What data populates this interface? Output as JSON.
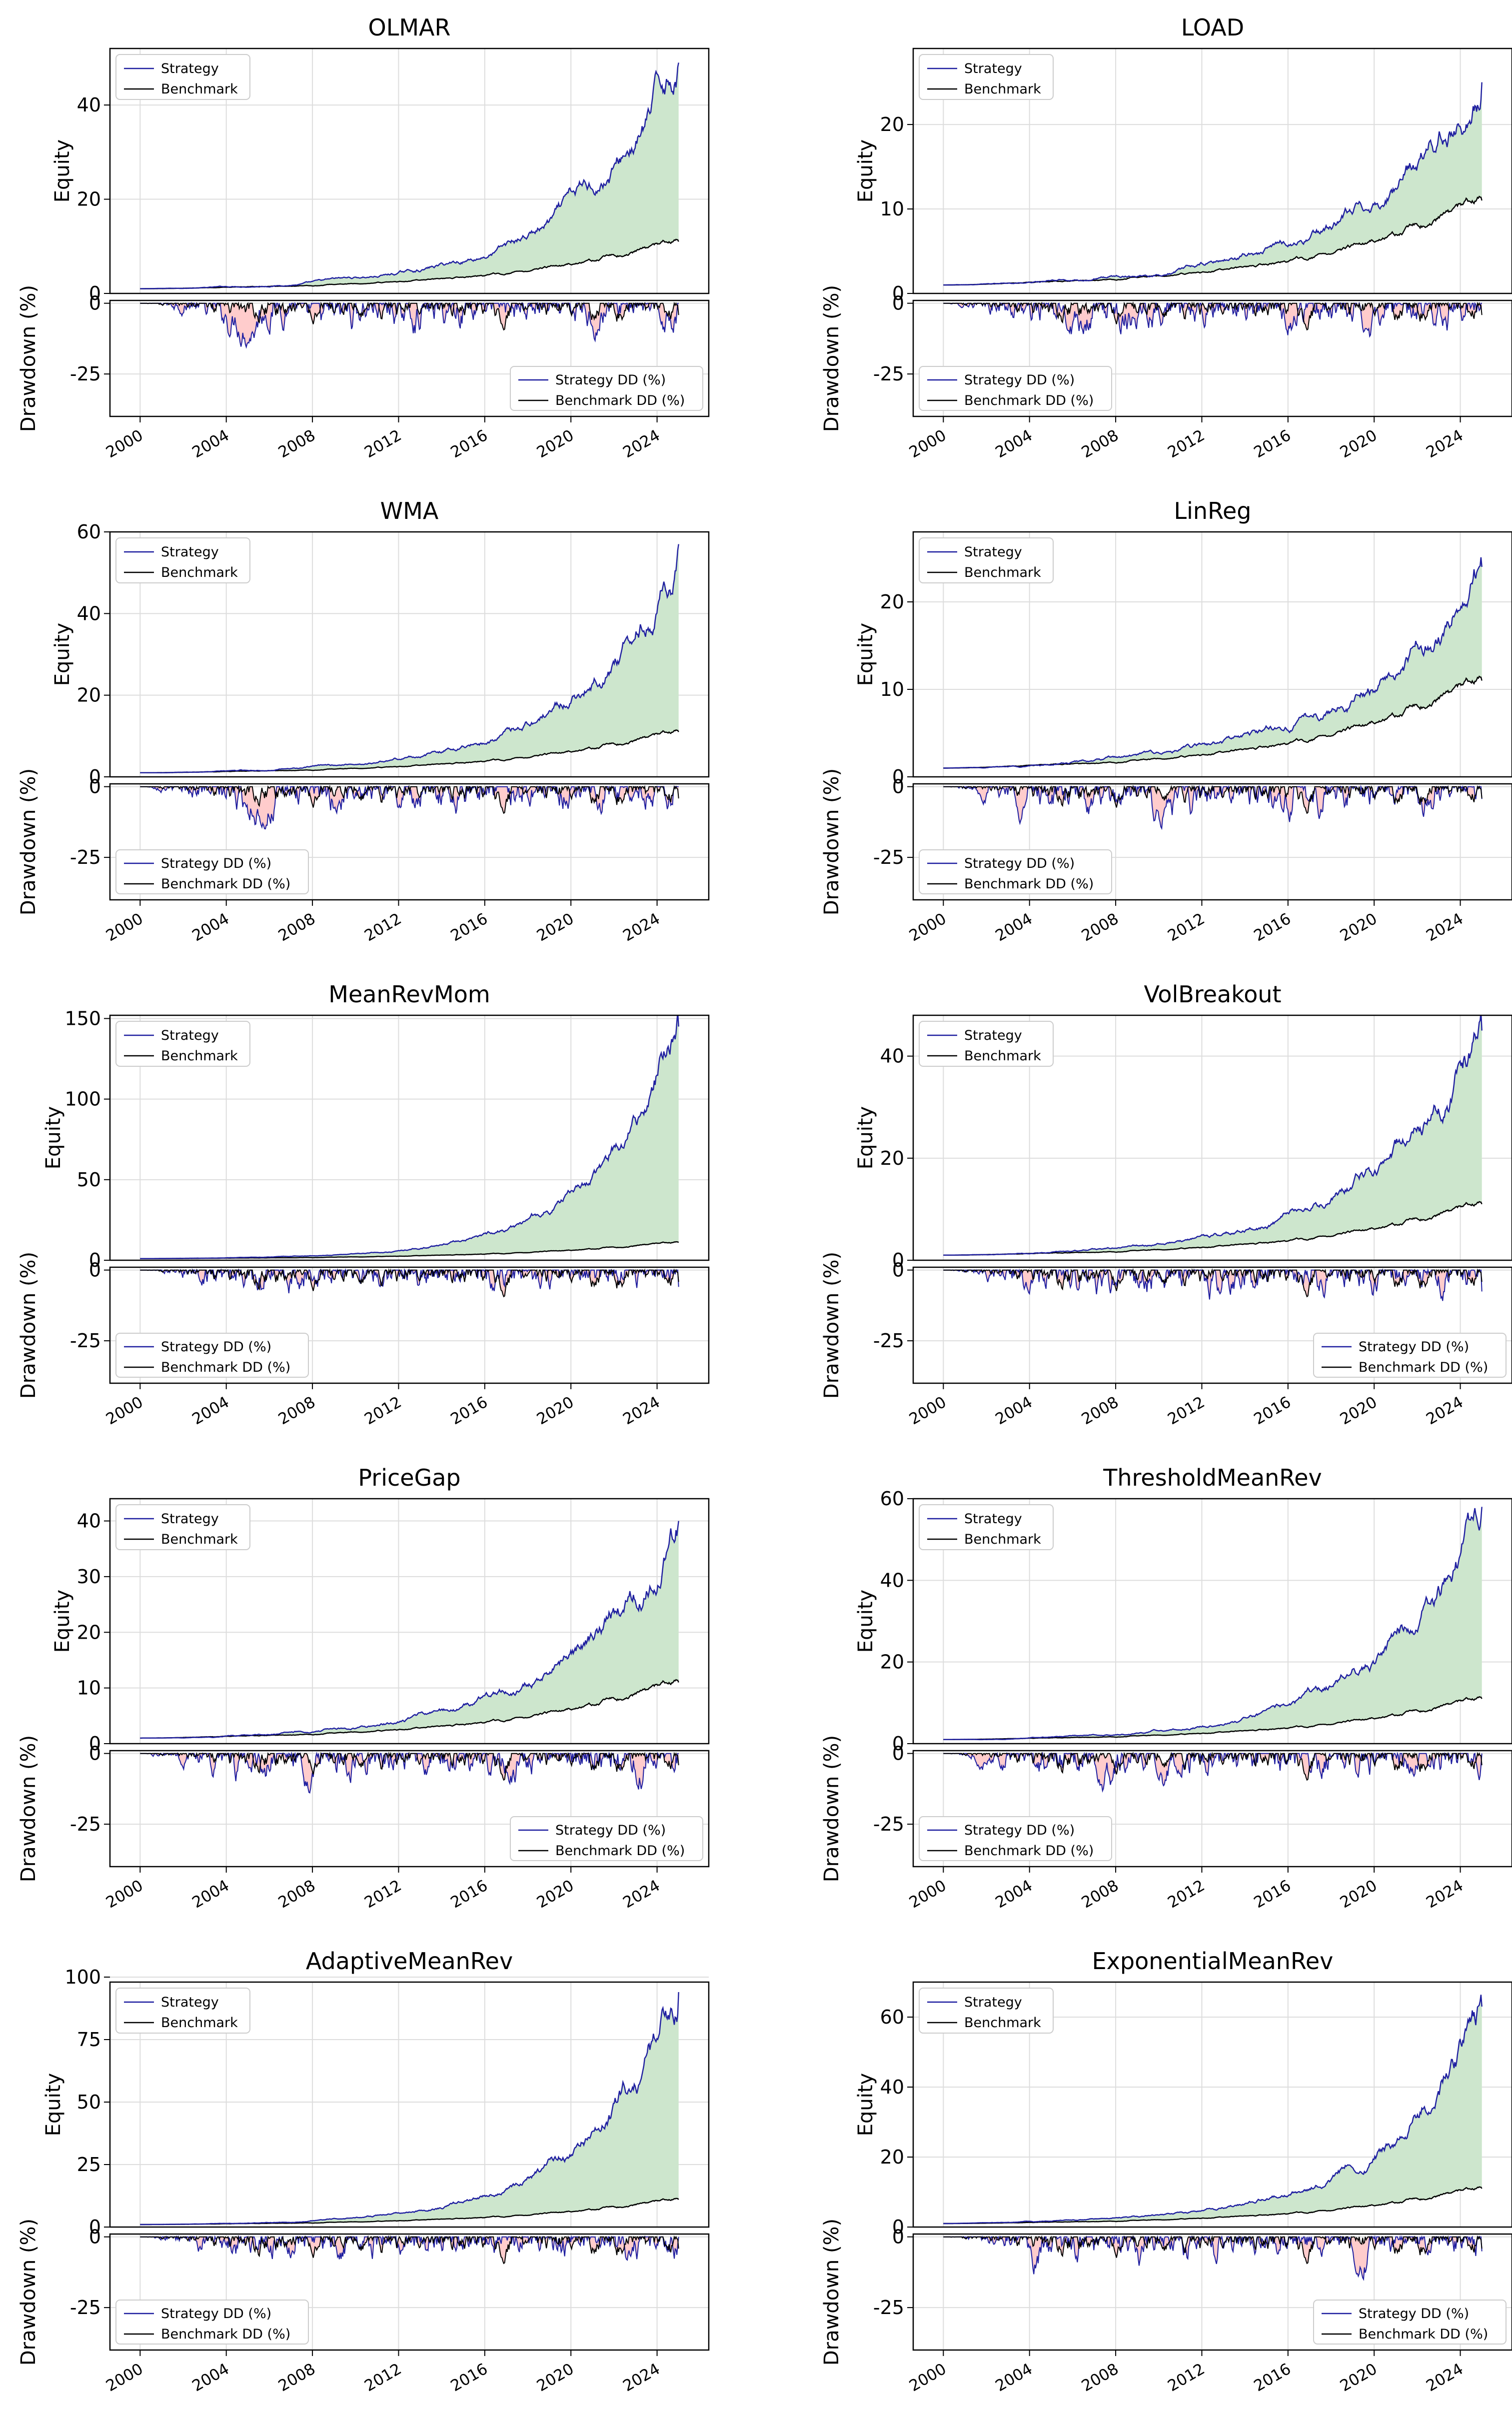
{
  "colors": {
    "strategy": "#1f1fa0",
    "benchmark": "#000000",
    "outperform_fill": "#cde6cd",
    "underperform_fill": "#ffcccc",
    "grid": "#dddddd"
  },
  "chart_data": [
    {
      "type": "line",
      "title": "OLMAR",
      "ylabel_top": "Equity",
      "ylabel_bottom": "Drawdown (%)",
      "equity_ylim": [
        0,
        52
      ],
      "equity_yticks": [
        0,
        20,
        40
      ],
      "dd_ylim": [
        -40,
        1
      ],
      "dd_yticks": [
        0,
        -25
      ],
      "x_ticks": [
        2000,
        2004,
        2008,
        2012,
        2016,
        2020,
        2024
      ],
      "strategy_final": 49,
      "benchmark_final": 11,
      "legend_dd_position": "lower right",
      "series": [
        {
          "name": "Strategy"
        },
        {
          "name": "Benchmark"
        }
      ],
      "dd_series": [
        {
          "name": "Strategy DD (%)"
        },
        {
          "name": "Benchmark DD (%)"
        }
      ]
    },
    {
      "type": "line",
      "title": "LOAD",
      "ylabel_top": "Equity",
      "ylabel_bottom": "Drawdown (%)",
      "equity_ylim": [
        0,
        29
      ],
      "equity_yticks": [
        0,
        10,
        20
      ],
      "dd_ylim": [
        -40,
        1
      ],
      "dd_yticks": [
        0,
        -25
      ],
      "x_ticks": [
        2000,
        2004,
        2008,
        2012,
        2016,
        2020,
        2024
      ],
      "strategy_final": 25,
      "benchmark_final": 11,
      "legend_dd_position": "lower left",
      "series": [
        {
          "name": "Strategy"
        },
        {
          "name": "Benchmark"
        }
      ],
      "dd_series": [
        {
          "name": "Strategy DD (%)"
        },
        {
          "name": "Benchmark DD (%)"
        }
      ]
    },
    {
      "type": "line",
      "title": "WMA",
      "ylabel_top": "Equity",
      "ylabel_bottom": "Drawdown (%)",
      "equity_ylim": [
        0,
        60
      ],
      "equity_yticks": [
        0,
        20,
        40,
        60
      ],
      "dd_ylim": [
        -40,
        1
      ],
      "dd_yticks": [
        0,
        -25
      ],
      "x_ticks": [
        2000,
        2004,
        2008,
        2012,
        2016,
        2020,
        2024
      ],
      "strategy_final": 57,
      "benchmark_final": 11,
      "legend_dd_position": "lower left",
      "series": [
        {
          "name": "Strategy"
        },
        {
          "name": "Benchmark"
        }
      ],
      "dd_series": [
        {
          "name": "Strategy DD (%)"
        },
        {
          "name": "Benchmark DD (%)"
        }
      ]
    },
    {
      "type": "line",
      "title": "LinReg",
      "ylabel_top": "Equity",
      "ylabel_bottom": "Drawdown (%)",
      "equity_ylim": [
        0,
        28
      ],
      "equity_yticks": [
        0,
        10,
        20
      ],
      "dd_ylim": [
        -40,
        1
      ],
      "dd_yticks": [
        0,
        -25
      ],
      "x_ticks": [
        2000,
        2004,
        2008,
        2012,
        2016,
        2020,
        2024
      ],
      "strategy_final": 24,
      "benchmark_final": 11,
      "legend_dd_position": "lower left",
      "series": [
        {
          "name": "Strategy"
        },
        {
          "name": "Benchmark"
        }
      ],
      "dd_series": [
        {
          "name": "Strategy DD (%)"
        },
        {
          "name": "Benchmark DD (%)"
        }
      ]
    },
    {
      "type": "line",
      "title": "MeanRevMom",
      "ylabel_top": "Equity",
      "ylabel_bottom": "Drawdown (%)",
      "equity_ylim": [
        0,
        152
      ],
      "equity_yticks": [
        0,
        50,
        100,
        150
      ],
      "dd_ylim": [
        -40,
        1
      ],
      "dd_yticks": [
        0,
        -25
      ],
      "x_ticks": [
        2000,
        2004,
        2008,
        2012,
        2016,
        2020,
        2024
      ],
      "strategy_final": 145,
      "benchmark_final": 11,
      "legend_dd_position": "lower left",
      "series": [
        {
          "name": "Strategy"
        },
        {
          "name": "Benchmark"
        }
      ],
      "dd_series": [
        {
          "name": "Strategy DD (%)"
        },
        {
          "name": "Benchmark DD (%)"
        }
      ]
    },
    {
      "type": "line",
      "title": "VolBreakout",
      "ylabel_top": "Equity",
      "ylabel_bottom": "Drawdown (%)",
      "equity_ylim": [
        0,
        48
      ],
      "equity_yticks": [
        0,
        20,
        40
      ],
      "dd_ylim": [
        -40,
        1
      ],
      "dd_yticks": [
        0,
        -25
      ],
      "x_ticks": [
        2000,
        2004,
        2008,
        2012,
        2016,
        2020,
        2024
      ],
      "strategy_final": 45,
      "benchmark_final": 11,
      "legend_dd_position": "lower right",
      "series": [
        {
          "name": "Strategy"
        },
        {
          "name": "Benchmark"
        }
      ],
      "dd_series": [
        {
          "name": "Strategy DD (%)"
        },
        {
          "name": "Benchmark DD (%)"
        }
      ]
    },
    {
      "type": "line",
      "title": "PriceGap",
      "ylabel_top": "Equity",
      "ylabel_bottom": "Drawdown (%)",
      "equity_ylim": [
        0,
        44
      ],
      "equity_yticks": [
        0,
        10,
        20,
        30,
        40
      ],
      "dd_ylim": [
        -40,
        1
      ],
      "dd_yticks": [
        0,
        -25
      ],
      "x_ticks": [
        2000,
        2004,
        2008,
        2012,
        2016,
        2020,
        2024
      ],
      "strategy_final": 40,
      "benchmark_final": 11,
      "legend_dd_position": "lower right",
      "series": [
        {
          "name": "Strategy"
        },
        {
          "name": "Benchmark"
        }
      ],
      "dd_series": [
        {
          "name": "Strategy DD (%)"
        },
        {
          "name": "Benchmark DD (%)"
        }
      ]
    },
    {
      "type": "line",
      "title": "ThresholdMeanRev",
      "ylabel_top": "Equity",
      "ylabel_bottom": "Drawdown (%)",
      "equity_ylim": [
        0,
        60
      ],
      "equity_yticks": [
        0,
        20,
        40,
        60
      ],
      "dd_ylim": [
        -40,
        1
      ],
      "dd_yticks": [
        0,
        -25
      ],
      "x_ticks": [
        2000,
        2004,
        2008,
        2012,
        2016,
        2020,
        2024
      ],
      "strategy_final": 58,
      "benchmark_final": 11,
      "legend_dd_position": "lower left",
      "series": [
        {
          "name": "Strategy"
        },
        {
          "name": "Benchmark"
        }
      ],
      "dd_series": [
        {
          "name": "Strategy DD (%)"
        },
        {
          "name": "Benchmark DD (%)"
        }
      ]
    },
    {
      "type": "line",
      "title": "AdaptiveMeanRev",
      "ylabel_top": "Equity",
      "ylabel_bottom": "Drawdown (%)",
      "equity_ylim": [
        0,
        98
      ],
      "equity_yticks": [
        0,
        25,
        50,
        75,
        100
      ],
      "dd_ylim": [
        -40,
        1
      ],
      "dd_yticks": [
        0,
        -25
      ],
      "x_ticks": [
        2000,
        2004,
        2008,
        2012,
        2016,
        2020,
        2024
      ],
      "strategy_final": 94,
      "benchmark_final": 11,
      "legend_dd_position": "lower left",
      "series": [
        {
          "name": "Strategy"
        },
        {
          "name": "Benchmark"
        }
      ],
      "dd_series": [
        {
          "name": "Strategy DD (%)"
        },
        {
          "name": "Benchmark DD (%)"
        }
      ]
    },
    {
      "type": "line",
      "title": "ExponentialMeanRev",
      "ylabel_top": "Equity",
      "ylabel_bottom": "Drawdown (%)",
      "equity_ylim": [
        0,
        70
      ],
      "equity_yticks": [
        0,
        20,
        40,
        60
      ],
      "dd_ylim": [
        -40,
        1
      ],
      "dd_yticks": [
        0,
        -25
      ],
      "x_ticks": [
        2000,
        2004,
        2008,
        2012,
        2016,
        2020,
        2024
      ],
      "strategy_final": 63,
      "benchmark_final": 11,
      "legend_dd_position": "lower right",
      "series": [
        {
          "name": "Strategy"
        },
        {
          "name": "Benchmark"
        }
      ],
      "dd_series": [
        {
          "name": "Strategy DD (%)"
        },
        {
          "name": "Benchmark DD (%)"
        }
      ]
    }
  ]
}
